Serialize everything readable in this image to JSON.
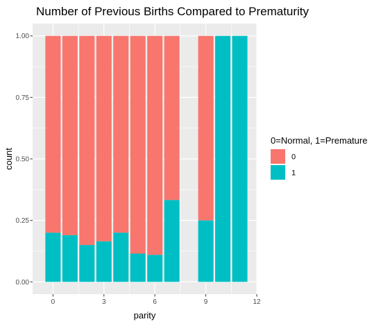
{
  "chart_data": {
    "type": "bar",
    "stacked": true,
    "title": "Number of Previous Births Compared to Prematurity",
    "xlabel": "parity",
    "ylabel": "count",
    "x": [
      0,
      1,
      2,
      3,
      4,
      5,
      6,
      7,
      9,
      10,
      11
    ],
    "series": [
      {
        "name": "0",
        "color": "#F8766D",
        "values": [
          0.8,
          0.81,
          0.85,
          0.835,
          0.8,
          0.885,
          0.89,
          0.667,
          0.75,
          0,
          0
        ]
      },
      {
        "name": "1",
        "color": "#00BFC4",
        "values": [
          0.2,
          0.19,
          0.15,
          0.165,
          0.2,
          0.115,
          0.11,
          0.333,
          0.25,
          1,
          1
        ]
      }
    ],
    "xlim": [
      -1.2,
      12
    ],
    "ylim": [
      -0.05,
      1.05
    ],
    "xticks": [
      0,
      3,
      6,
      9,
      12
    ],
    "yticks": [
      0,
      0.25,
      0.5,
      0.75,
      1.0
    ],
    "ytick_labels": [
      "0.00",
      "0.25",
      "0.50",
      "0.75",
      "1.00"
    ],
    "legend": {
      "title": "0=Normal, 1=Premature",
      "position": "right"
    },
    "grid": true
  }
}
